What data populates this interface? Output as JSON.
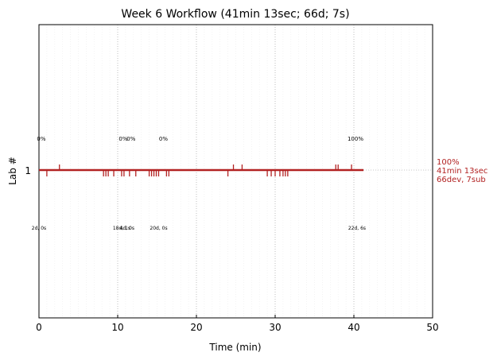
{
  "chart_data": {
    "type": "timeline",
    "title": "Week 6 Workflow (41min 13sec; 66d; 7s)",
    "xlabel": "Time (min)",
    "ylabel": "Lab #",
    "xlim": [
      0,
      50
    ],
    "xticks": [
      0,
      10,
      20,
      30,
      40,
      50
    ],
    "yticks": [
      {
        "value": 1,
        "label": "1"
      }
    ],
    "grid": "vertical dotted lines every 10 min, faint minor lines every 1 min",
    "colors": {
      "bar": "#b22222",
      "right_label": "#b22222",
      "grid": "#b0b0b0"
    },
    "series": [
      {
        "lab": "1",
        "end_min": 41.22,
        "right_label": [
          "100%",
          "41min 13sec",
          "66dev, 7sub"
        ],
        "events_down": [
          1.0,
          8.2,
          8.5,
          8.8,
          9.5,
          10.5,
          10.8,
          11.5,
          12.3,
          14.0,
          14.3,
          14.6,
          14.9,
          15.2,
          16.2,
          16.5,
          24.0,
          29.0,
          29.5,
          30.0,
          30.6,
          31.0,
          31.3,
          31.6
        ],
        "events_up": [
          2.6,
          24.7,
          25.8,
          37.7,
          38.0,
          39.7
        ]
      }
    ],
    "annotations_top": [
      {
        "x": 0.3,
        "text": "0%"
      },
      {
        "x": 10.7,
        "text": "0%"
      },
      {
        "x": 11.7,
        "text": "0%"
      },
      {
        "x": 15.8,
        "text": "0%"
      },
      {
        "x": 40.2,
        "text": "100%"
      }
    ],
    "annotations_bottom": [
      {
        "x": 0.0,
        "text": "2d, 0s"
      },
      {
        "x": 10.5,
        "text": "18d, 1s"
      },
      {
        "x": 11.2,
        "text": "4d, 0s"
      },
      {
        "x": 15.2,
        "text": "20d, 0s"
      },
      {
        "x": 40.4,
        "text": "22d, 6s"
      }
    ]
  }
}
